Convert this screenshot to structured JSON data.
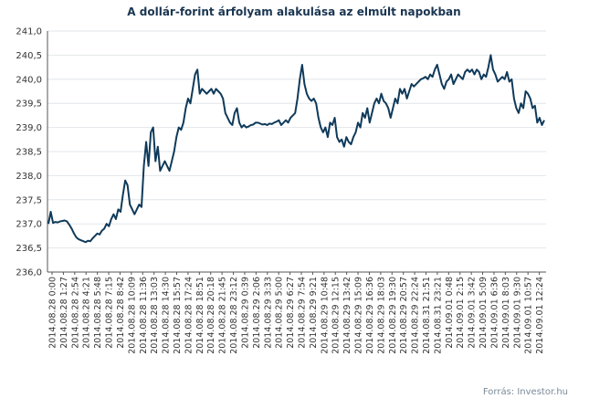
{
  "chart_data": {
    "type": "line",
    "title": "A dollár-forint árfolyam alakulása az elmúlt napokban",
    "source": "Forrás: Investor.hu",
    "xlabel": "",
    "ylabel": "",
    "ylim": [
      236.0,
      241.0
    ],
    "y_ticks": [
      "236,0",
      "236,5",
      "237,0",
      "237,5",
      "238,0",
      "238,5",
      "239,0",
      "239,5",
      "240,0",
      "240,5",
      "241,0"
    ],
    "x_ticks": [
      "2014.08.28 0:00",
      "2014.08.28 1:27",
      "2014.08.28 2:54",
      "2014.08.28 4:21",
      "2014.08.28 5:48",
      "2014.08.28 7:15",
      "2014.08.28 8:42",
      "2014.08.28 10:09",
      "2014.08.28 11:36",
      "2014.08.28 13:03",
      "2014.08.28 14:30",
      "2014.08.28 15:57",
      "2014.08.28 17:24",
      "2014.08.28 18:51",
      "2014.08.28 20:18",
      "2014.08.28 21:45",
      "2014.08.28 23:12",
      "2014.08.29 0:39",
      "2014.08.29 2:06",
      "2014.08.29 3:33",
      "2014.08.29 5:00",
      "2014.08.29 6:27",
      "2014.08.29 7:54",
      "2014.08.29 9:21",
      "2014.08.29 10:48",
      "2014.08.29 12:15",
      "2014.08.29 13:42",
      "2014.08.29 15:09",
      "2014.08.29 16:36",
      "2014.08.29 18:03",
      "2014.08.29 19:30",
      "2014.08.29 20:57",
      "2014.08.29 22:24",
      "2014.08.31 21:51",
      "2014.08.31 23:21",
      "2014.09.01 0:48",
      "2014.09.01 2:15",
      "2014.09.01 3:42",
      "2014.09.01 5:09",
      "2014.09.01 6:36",
      "2014.09.01 8:03",
      "2014.09.01 9:30",
      "2014.09.01 10:57",
      "2014.09.01 12:24"
    ],
    "grid": true,
    "legend": "none",
    "color": "#0f3a5a",
    "series": [
      {
        "values": [
          237.0,
          237.25,
          237.02,
          237.04,
          237.03,
          237.05,
          237.06,
          237.07,
          237.05,
          236.98,
          236.9,
          236.8,
          236.72,
          236.68,
          236.66,
          236.64,
          236.62,
          236.65,
          236.64,
          236.7,
          236.75,
          236.8,
          236.78,
          236.86,
          236.9,
          237.0,
          236.95,
          237.1,
          237.2,
          237.1,
          237.3,
          237.25,
          237.6,
          237.9,
          237.8,
          237.4,
          237.3,
          237.2,
          237.3,
          237.4,
          237.35,
          238.2,
          238.7,
          238.2,
          238.9,
          239.0,
          238.3,
          238.6,
          238.1,
          238.2,
          238.3,
          238.2,
          238.1,
          238.3,
          238.5,
          238.8,
          239.0,
          238.95,
          239.1,
          239.4,
          239.6,
          239.5,
          239.8,
          240.1,
          240.2,
          239.7,
          239.8,
          239.75,
          239.7,
          239.75,
          239.8,
          239.7,
          239.8,
          239.75,
          239.7,
          239.6,
          239.3,
          239.2,
          239.1,
          239.05,
          239.3,
          239.4,
          239.1,
          239.0,
          239.05,
          239.0,
          239.02,
          239.05,
          239.06,
          239.1,
          239.1,
          239.08,
          239.06,
          239.07,
          239.05,
          239.08,
          239.07,
          239.1,
          239.12,
          239.15,
          239.05,
          239.1,
          239.15,
          239.1,
          239.2,
          239.25,
          239.3,
          239.6,
          240.0,
          240.3,
          239.9,
          239.7,
          239.6,
          239.55,
          239.6,
          239.5,
          239.2,
          239.0,
          238.9,
          239.0,
          238.8,
          239.1,
          239.05,
          239.2,
          238.8,
          238.7,
          238.75,
          238.6,
          238.8,
          238.7,
          238.65,
          238.8,
          238.9,
          239.1,
          239.0,
          239.3,
          239.2,
          239.4,
          239.1,
          239.3,
          239.5,
          239.6,
          239.5,
          239.7,
          239.55,
          239.5,
          239.4,
          239.2,
          239.4,
          239.6,
          239.5,
          239.8,
          239.7,
          239.8,
          239.6,
          239.75,
          239.9,
          239.85,
          239.9,
          239.95,
          240.0,
          240.02,
          240.05,
          240.0,
          240.1,
          240.05,
          240.2,
          240.3,
          240.1,
          239.9,
          239.8,
          239.95,
          240.0,
          240.1,
          239.9,
          240.0,
          240.1,
          240.05,
          240.0,
          240.15,
          240.2,
          240.15,
          240.2,
          240.1,
          240.2,
          240.15,
          240.0,
          240.1,
          240.05,
          240.25,
          240.5,
          240.2,
          240.1,
          239.95,
          240.0,
          240.05,
          240.0,
          240.15,
          239.95,
          240.0,
          239.6,
          239.4,
          239.3,
          239.5,
          239.4,
          239.75,
          239.7,
          239.6,
          239.4,
          239.45,
          239.1,
          239.2,
          239.05,
          239.15
        ]
      }
    ]
  }
}
